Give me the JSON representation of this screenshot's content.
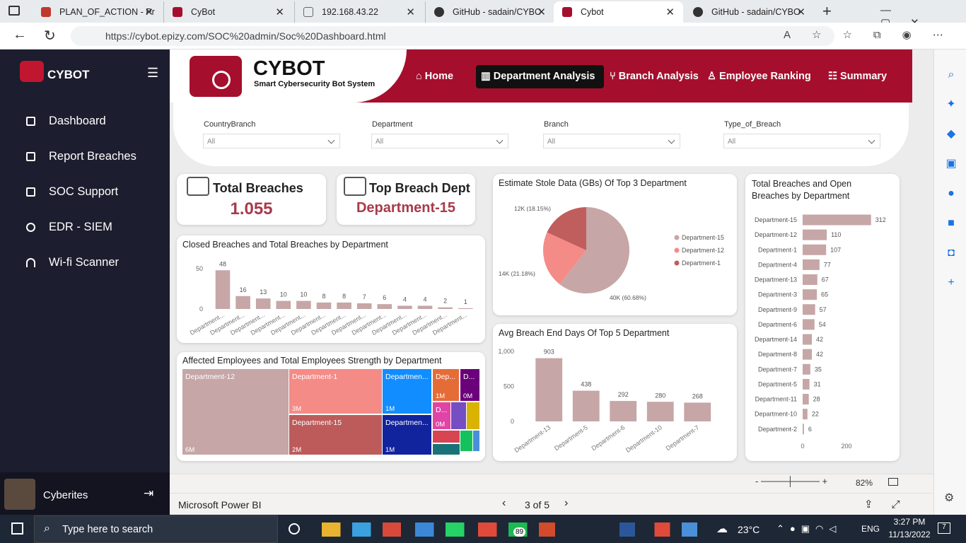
{
  "browser": {
    "tabs": [
      "PLAN_OF_ACTION - Pr",
      "CyBot",
      "192.168.43.22",
      "GitHub - sadain/CYBO",
      "Cybot",
      "GitHub - sadain/CYBO"
    ],
    "url": "https://cybot.epizy.com/SOC%20admin/Soc%20Dashboard.html"
  },
  "sidebar": {
    "brand": "CYBOT",
    "menu": [
      "Dashboard",
      "Report Breaches",
      "SOC Support",
      "EDR - SIEM",
      "Wi-fi Scanner"
    ],
    "user": "Cyberites"
  },
  "header": {
    "title": "CYBOT",
    "subtitle": "Smart Cybersecurity Bot System",
    "nav": [
      "Home",
      "Department Analysis",
      "Branch Analysis",
      "Employee Ranking",
      "Summary"
    ]
  },
  "filters": [
    {
      "label": "CountryBranch",
      "value": "All"
    },
    {
      "label": "Department",
      "value": "All"
    },
    {
      "label": "Branch",
      "value": "All"
    },
    {
      "label": "Type_of_Breach",
      "value": "All"
    }
  ],
  "cards": [
    {
      "title": "Total Breaches",
      "value": "1.055"
    },
    {
      "title": "Top Breach Dept",
      "value": "Department-15"
    }
  ],
  "chart_data": [
    {
      "type": "bar",
      "title": "Closed Breaches and Total Breaches by Department",
      "categories": [
        "Department...",
        "Department...",
        "Department...",
        "Department...",
        "Department...",
        "Department...",
        "Department...",
        "Department...",
        "Department...",
        "Department...",
        "Department...",
        "Department...",
        "Department..."
      ],
      "values": [
        48,
        16,
        13,
        10,
        10,
        8,
        8,
        7,
        6,
        4,
        4,
        2,
        1
      ],
      "color": "#c6a6a6",
      "ylim": [
        0,
        50
      ],
      "yticks": [
        0,
        50
      ]
    },
    {
      "type": "pie",
      "title": "Estimate Stole Data (GBs) Of Top 3 Department",
      "categories": [
        "Department-15",
        "Department-12",
        "Department-1"
      ],
      "values": [
        40000,
        14000,
        12000
      ],
      "value_labels": [
        "40K (60.68%)",
        "14K (21.18%)",
        "12K (18.15%)"
      ],
      "colors": [
        "#c6a6a6",
        "#f48b87",
        "#c05e5e"
      ]
    },
    {
      "type": "bar",
      "title": "Avg Breach End Days Of Top 5 Department",
      "categories": [
        "Department-13",
        "Department-5",
        "Department-6",
        "Department-10",
        "Department-7"
      ],
      "values": [
        903,
        438,
        292,
        280,
        268
      ],
      "color": "#c6a6a6",
      "ylim": [
        0,
        1000
      ],
      "yticks": [
        0,
        500,
        {
          "value": 1000,
          "label": "1,000"
        }
      ]
    },
    {
      "type": "hbar",
      "title": "Total Breaches and Open Breaches by Department",
      "categories": [
        "Department-15",
        "Department-12",
        "Department-1",
        "Department-4",
        "Department-13",
        "Department-3",
        "Department-9",
        "Department-6",
        "Department-14",
        "Department-8",
        "Department-7",
        "Department-5",
        "Department-11",
        "Department-10",
        "Department-2"
      ],
      "values": [
        312,
        110,
        107,
        77,
        67,
        65,
        57,
        54,
        42,
        42,
        35,
        31,
        28,
        22,
        6
      ],
      "color": "#c6a6a6",
      "xlim": [
        0,
        350
      ],
      "xticks": [
        0,
        200
      ]
    },
    {
      "type": "treemap",
      "title": "Affected Employees and Total Employees Strength by Department",
      "categories": [
        "Department-12",
        "Department-1",
        "Department-15",
        "Departmen...",
        "Departmen...",
        "Dep...",
        "D...",
        "D..."
      ],
      "values": [
        6,
        3,
        2,
        1,
        1,
        1,
        0,
        0
      ],
      "value_labels": [
        "6M",
        "3M",
        "2M",
        "1M",
        "1M",
        "1M",
        "0M",
        "0M"
      ],
      "colors": [
        "#c6a6a6",
        "#f48b87",
        "#bd5b5b",
        "#118dff",
        "#12239e",
        "#e66c37",
        "#6b007b",
        "#e044a7"
      ]
    }
  ],
  "report_footer": {
    "zoom": "82%",
    "app": "Microsoft Power BI",
    "page": "3 of 5"
  },
  "taskbar": {
    "search": "Type here to search",
    "badge": "89",
    "weather": "23°C",
    "language": "ENG",
    "time": "3:27 PM",
    "date": "11/13/2022",
    "notifications": "7"
  }
}
